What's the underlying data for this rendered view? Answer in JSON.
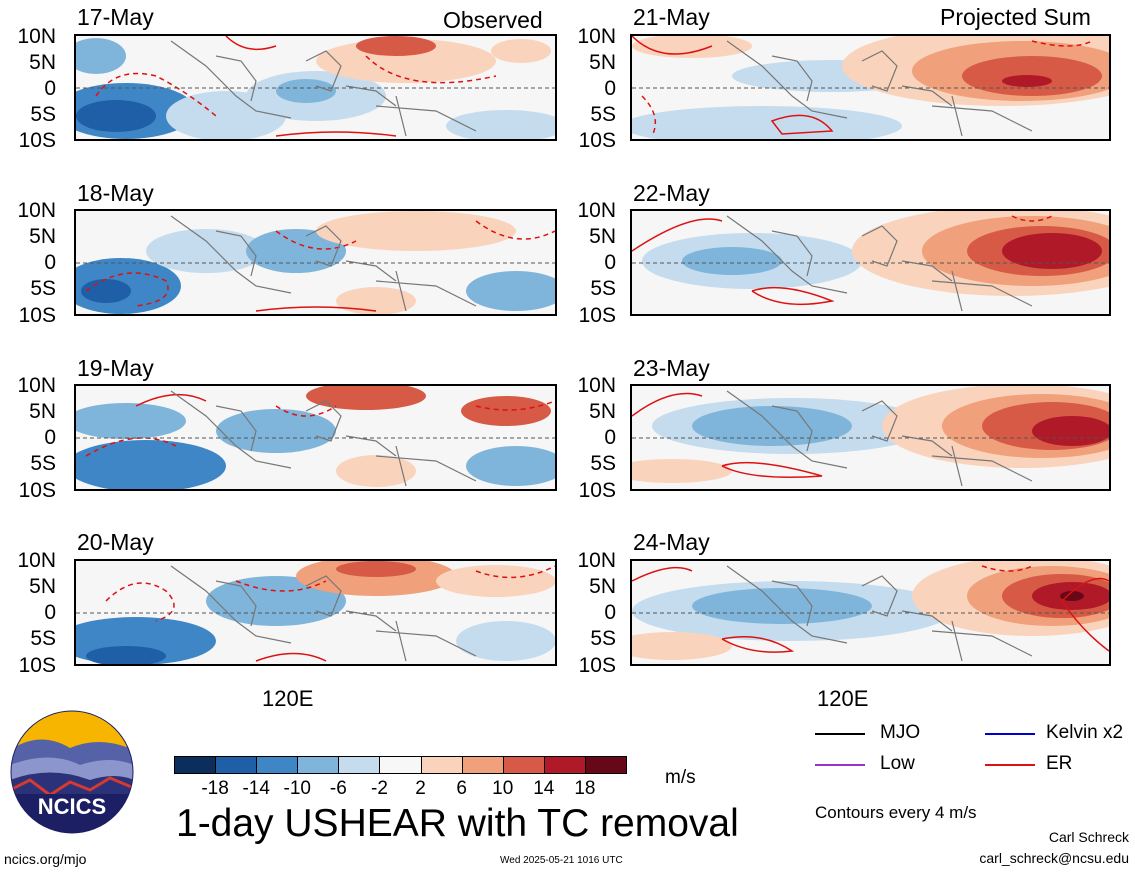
{
  "left_header": "Observed",
  "right_header": "Projected Sum",
  "observed_dates": [
    "17-May",
    "18-May",
    "19-May",
    "20-May"
  ],
  "projected_dates": [
    "21-May",
    "22-May",
    "23-May",
    "24-May"
  ],
  "lat_labels": [
    "10N",
    "5N",
    "0",
    "5S",
    "10S"
  ],
  "lon_label": "120E",
  "colorbar": {
    "ticks": [
      "-18",
      "-14",
      "-10",
      "-6",
      "-2",
      "2",
      "6",
      "10",
      "14",
      "18"
    ],
    "colors": [
      "#0b2e5c",
      "#1f5fa8",
      "#3f86c6",
      "#7fb5da",
      "#c4dcee",
      "#f7f7f7",
      "#fad3bc",
      "#f0a07a",
      "#d65a45",
      "#b01928",
      "#660818"
    ],
    "units": "m/s"
  },
  "title": "1-day USHEAR with TC removal",
  "legend": {
    "items": [
      {
        "label": "MJO",
        "color": "#000000"
      },
      {
        "label": "Kelvin x2",
        "color": "#0000cc"
      },
      {
        "label": "Low",
        "color": "#9933cc"
      },
      {
        "label": "ER",
        "color": "#dd1111"
      }
    ],
    "note": "Contours every 4 m/s"
  },
  "logo_text": "NCICS",
  "footer": {
    "url": "ncics.org/mjo",
    "timestamp": "Wed 2025-05-21 1016 UTC",
    "author": "Carl Schreck",
    "email": "carl_schreck@ncsu.edu"
  }
}
